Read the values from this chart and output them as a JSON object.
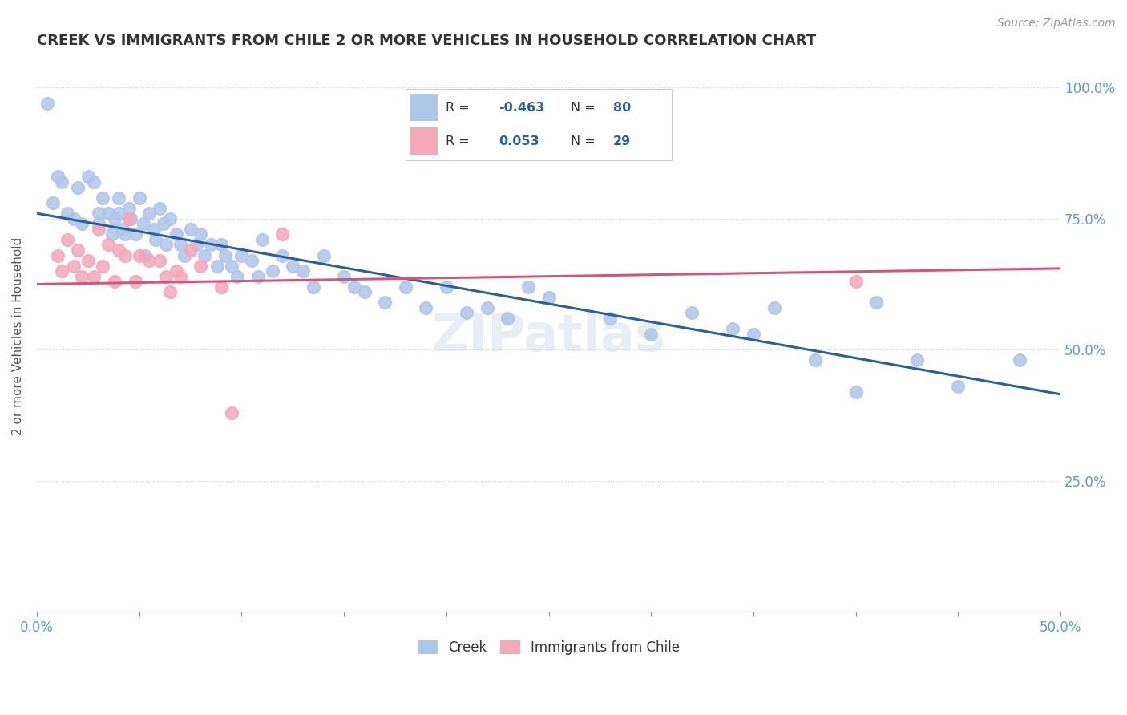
{
  "title": "CREEK VS IMMIGRANTS FROM CHILE 2 OR MORE VEHICLES IN HOUSEHOLD CORRELATION CHART",
  "source": "Source: ZipAtlas.com",
  "ylabel_left": "2 or more Vehicles in Household",
  "xlim": [
    0.0,
    0.5
  ],
  "ylim": [
    0.0,
    1.05
  ],
  "xtick_positions": [
    0.0,
    0.05,
    0.1,
    0.15,
    0.2,
    0.25,
    0.3,
    0.35,
    0.4,
    0.45,
    0.5
  ],
  "xticklabels": [
    "0.0%",
    "",
    "",
    "",
    "",
    "",
    "",
    "",
    "",
    "",
    "50.0%"
  ],
  "yticks_right": [
    0.25,
    0.5,
    0.75,
    1.0
  ],
  "yticklabels_right": [
    "25.0%",
    "50.0%",
    "75.0%",
    "100.0%"
  ],
  "creek_R": -0.463,
  "creek_N": 80,
  "chile_R": 0.053,
  "chile_N": 29,
  "creek_color": "#aec6e8",
  "creek_line_color": "#2a6099",
  "chile_color": "#f4a7b9",
  "chile_line_color": "#d9527a",
  "background_color": "#ffffff",
  "creek_line_x0": 0.0,
  "creek_line_y0": 0.76,
  "creek_line_x1": 0.5,
  "creek_line_y1": 0.415,
  "chile_line_x0": 0.0,
  "chile_line_y0": 0.625,
  "chile_line_x1": 0.5,
  "chile_line_y1": 0.655,
  "creek_x": [
    0.005,
    0.008,
    0.01,
    0.012,
    0.015,
    0.018,
    0.02,
    0.022,
    0.025,
    0.028,
    0.03,
    0.03,
    0.032,
    0.035,
    0.037,
    0.038,
    0.04,
    0.04,
    0.042,
    0.043,
    0.045,
    0.046,
    0.048,
    0.05,
    0.052,
    0.053,
    0.055,
    0.057,
    0.058,
    0.06,
    0.062,
    0.063,
    0.065,
    0.068,
    0.07,
    0.072,
    0.075,
    0.078,
    0.08,
    0.082,
    0.085,
    0.088,
    0.09,
    0.092,
    0.095,
    0.098,
    0.1,
    0.105,
    0.108,
    0.11,
    0.115,
    0.12,
    0.125,
    0.13,
    0.135,
    0.14,
    0.15,
    0.155,
    0.16,
    0.17,
    0.18,
    0.19,
    0.2,
    0.21,
    0.22,
    0.23,
    0.24,
    0.25,
    0.28,
    0.3,
    0.32,
    0.34,
    0.35,
    0.36,
    0.38,
    0.4,
    0.41,
    0.43,
    0.45,
    0.48
  ],
  "creek_y": [
    0.97,
    0.78,
    0.83,
    0.82,
    0.76,
    0.75,
    0.81,
    0.74,
    0.83,
    0.82,
    0.76,
    0.74,
    0.79,
    0.76,
    0.72,
    0.75,
    0.79,
    0.76,
    0.73,
    0.72,
    0.77,
    0.75,
    0.72,
    0.79,
    0.74,
    0.68,
    0.76,
    0.73,
    0.71,
    0.77,
    0.74,
    0.7,
    0.75,
    0.72,
    0.7,
    0.68,
    0.73,
    0.7,
    0.72,
    0.68,
    0.7,
    0.66,
    0.7,
    0.68,
    0.66,
    0.64,
    0.68,
    0.67,
    0.64,
    0.71,
    0.65,
    0.68,
    0.66,
    0.65,
    0.62,
    0.68,
    0.64,
    0.62,
    0.61,
    0.59,
    0.62,
    0.58,
    0.62,
    0.57,
    0.58,
    0.56,
    0.62,
    0.6,
    0.56,
    0.53,
    0.57,
    0.54,
    0.53,
    0.58,
    0.48,
    0.42,
    0.59,
    0.48,
    0.43,
    0.48
  ],
  "chile_x": [
    0.01,
    0.012,
    0.015,
    0.018,
    0.02,
    0.022,
    0.025,
    0.028,
    0.03,
    0.032,
    0.035,
    0.038,
    0.04,
    0.043,
    0.045,
    0.048,
    0.05,
    0.055,
    0.06,
    0.063,
    0.065,
    0.068,
    0.07,
    0.075,
    0.08,
    0.09,
    0.095,
    0.12,
    0.4
  ],
  "chile_y": [
    0.68,
    0.65,
    0.71,
    0.66,
    0.69,
    0.64,
    0.67,
    0.64,
    0.73,
    0.66,
    0.7,
    0.63,
    0.69,
    0.68,
    0.75,
    0.63,
    0.68,
    0.67,
    0.67,
    0.64,
    0.61,
    0.65,
    0.64,
    0.69,
    0.66,
    0.62,
    0.38,
    0.72,
    0.63
  ]
}
